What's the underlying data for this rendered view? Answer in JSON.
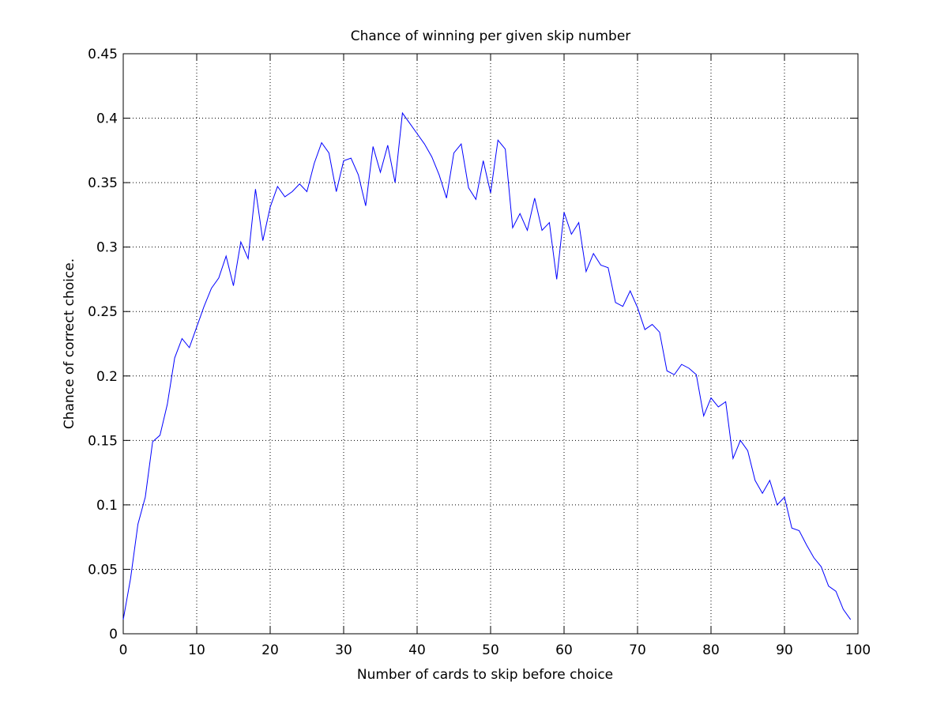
{
  "chart_data": {
    "type": "line",
    "title": "Chance of winning per given skip number",
    "xlabel": "Number of cards to skip before choice",
    "ylabel": "Chance of correct choice.",
    "xlim": [
      0,
      100
    ],
    "ylim": [
      0,
      0.45
    ],
    "xticks": [
      0,
      10,
      20,
      30,
      40,
      50,
      60,
      70,
      80,
      90,
      100
    ],
    "yticks": [
      0,
      0.05,
      0.1,
      0.15,
      0.2,
      0.25,
      0.3,
      0.35,
      0.4,
      0.45
    ],
    "xtick_labels": [
      "0",
      "10",
      "20",
      "30",
      "40",
      "50",
      "60",
      "70",
      "80",
      "90",
      "100"
    ],
    "ytick_labels": [
      "0",
      "0.05",
      "0.1",
      "0.15",
      "0.2",
      "0.25",
      "0.3",
      "0.35",
      "0.4",
      "0.45"
    ],
    "grid": true,
    "line_color": "#0000ff",
    "series": [
      {
        "x": [
          0,
          1,
          2,
          3,
          4,
          5,
          6,
          7,
          8,
          9,
          10,
          11,
          12,
          13,
          14,
          15,
          16,
          17,
          18,
          19,
          20,
          21,
          22,
          23,
          24,
          25,
          26,
          27,
          28,
          29,
          30,
          31,
          32,
          33,
          34,
          35,
          36,
          37,
          38,
          39,
          40,
          41,
          42,
          43,
          44,
          45,
          46,
          47,
          48,
          49,
          50,
          51,
          52,
          53,
          54,
          55,
          56,
          57,
          58,
          59,
          60,
          61,
          62,
          63,
          64,
          65,
          66,
          67,
          68,
          69,
          70,
          71,
          72,
          73,
          74,
          75,
          76,
          77,
          78,
          79,
          80,
          81,
          82,
          83,
          84,
          85,
          86,
          87,
          88,
          89,
          90,
          91,
          92,
          93,
          94,
          95,
          96,
          97,
          98,
          99
        ],
        "values": [
          0.011,
          0.043,
          0.085,
          0.106,
          0.149,
          0.154,
          0.178,
          0.214,
          0.229,
          0.222,
          0.238,
          0.254,
          0.268,
          0.276,
          0.293,
          0.27,
          0.304,
          0.291,
          0.345,
          0.305,
          0.331,
          0.347,
          0.339,
          0.343,
          0.349,
          0.343,
          0.365,
          0.381,
          0.373,
          0.343,
          0.367,
          0.369,
          0.356,
          0.332,
          0.378,
          0.358,
          0.379,
          0.35,
          0.404,
          0.396,
          0.388,
          0.38,
          0.37,
          0.356,
          0.338,
          0.373,
          0.38,
          0.346,
          0.337,
          0.367,
          0.342,
          0.383,
          0.376,
          0.315,
          0.326,
          0.313,
          0.338,
          0.313,
          0.319,
          0.275,
          0.327,
          0.31,
          0.319,
          0.281,
          0.295,
          0.286,
          0.284,
          0.257,
          0.254,
          0.266,
          0.253,
          0.236,
          0.24,
          0.234,
          0.204,
          0.201,
          0.209,
          0.206,
          0.201,
          0.169,
          0.183,
          0.176,
          0.18,
          0.136,
          0.15,
          0.142,
          0.119,
          0.109,
          0.119,
          0.1,
          0.106,
          0.082,
          0.08,
          0.069,
          0.059,
          0.052,
          0.037,
          0.033,
          0.019,
          0.011
        ]
      }
    ]
  }
}
